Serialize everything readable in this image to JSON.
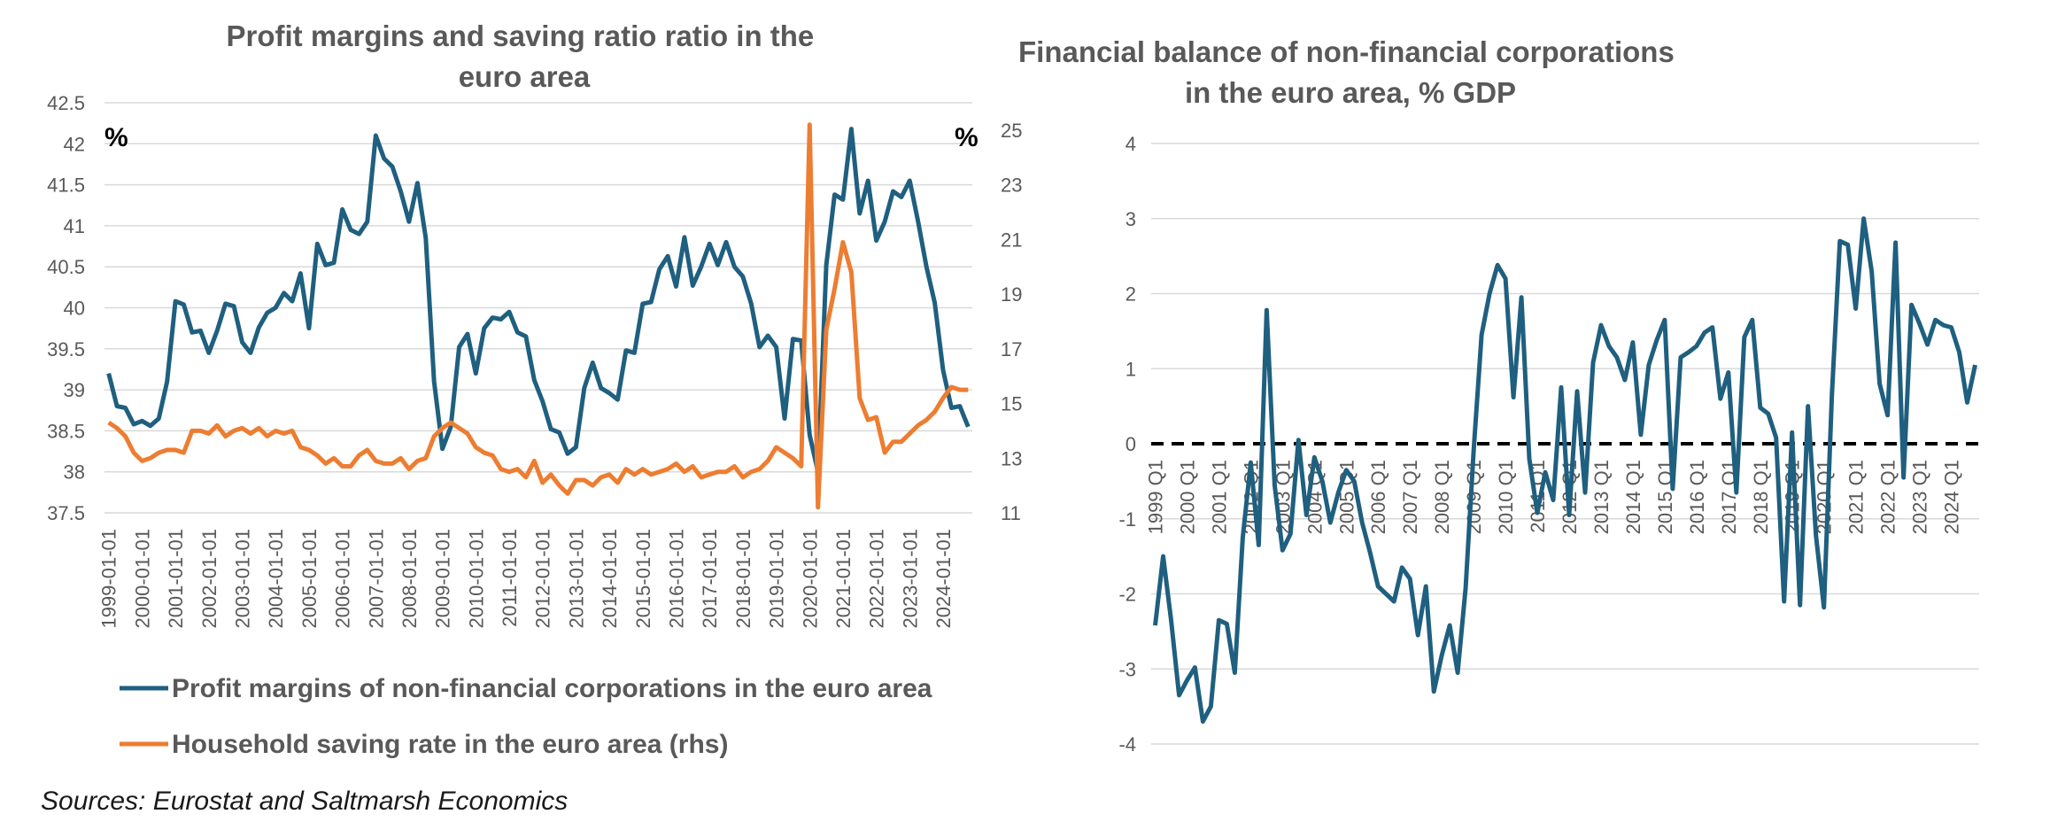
{
  "source_note": "Sources: Eurostat and Saltmarsh Economics",
  "colors": {
    "blue": "#1f5f7f",
    "orange": "#ed7d31",
    "grid": "#d9d9d9",
    "axis_text": "#595959"
  },
  "chart_data": [
    {
      "type": "line",
      "title": "Profit margins and saving ratio ratio in the euro area",
      "y_unit_left": "%",
      "y_unit_right": "%",
      "ylim": [
        37.5,
        42.5
      ],
      "yticks": [
        "42.5",
        "42",
        "41.5",
        "41",
        "40.5",
        "40",
        "39.5",
        "39",
        "38.5",
        "38",
        "37.5"
      ],
      "y2lim": [
        11,
        26
      ],
      "y2ticks": [
        "25",
        "23",
        "21",
        "19",
        "17",
        "15",
        "13",
        "11"
      ],
      "x_tick_labels": [
        "1999-01-01",
        "2000-01-01",
        "2001-01-01",
        "2002-01-01",
        "2003-01-01",
        "2004-01-01",
        "2005-01-01",
        "2006-01-01",
        "2007-01-01",
        "2008-01-01",
        "2009-01-01",
        "2010-01-01",
        "2011-01-01",
        "2012-01-01",
        "2013-01-01",
        "2014-01-01",
        "2015-01-01",
        "2016-01-01",
        "2017-01-01",
        "2018-01-01",
        "2019-01-01",
        "2020-01-01",
        "2021-01-01",
        "2022-01-01",
        "2023-01-01",
        "2024-01-01"
      ],
      "x_start": 1999.0,
      "x_step": 0.25,
      "grid": "horizontal",
      "legend_position": "bottom",
      "series": [
        {
          "name": "Profit margins of non-financial corporations in the euro area",
          "axis": "left",
          "color": "#1f5f7f",
          "values": [
            39.2,
            38.8,
            38.78,
            38.58,
            38.62,
            38.56,
            38.65,
            39.1,
            40.08,
            40.04,
            39.7,
            39.72,
            39.45,
            39.72,
            40.05,
            40.02,
            39.58,
            39.45,
            39.76,
            39.94,
            40.0,
            40.18,
            40.08,
            40.42,
            39.75,
            40.78,
            40.52,
            40.55,
            41.2,
            40.95,
            40.9,
            41.05,
            42.1,
            41.82,
            41.72,
            41.42,
            41.05,
            41.52,
            40.85,
            39.1,
            38.28,
            38.55,
            39.52,
            39.68,
            39.2,
            39.75,
            39.88,
            39.86,
            39.95,
            39.7,
            39.65,
            39.12,
            38.86,
            38.52,
            38.48,
            38.22,
            38.3,
            39.02,
            39.33,
            39.02,
            38.96,
            38.88,
            39.48,
            39.45,
            40.05,
            40.07,
            40.47,
            40.63,
            40.26,
            40.86,
            40.27,
            40.5,
            40.78,
            40.52,
            40.8,
            40.5,
            40.38,
            40.05,
            39.52,
            39.66,
            39.52,
            38.65,
            39.62,
            39.6,
            38.45,
            38.0,
            40.52,
            41.38,
            41.32,
            42.18,
            41.15,
            41.55,
            40.82,
            41.05,
            41.42,
            41.35,
            41.55,
            41.05,
            40.5,
            40.06,
            39.24,
            38.78,
            38.8,
            38.55
          ]
        },
        {
          "name": "Household saving rate in the euro area (rhs)",
          "axis": "right",
          "color": "#ed7d31",
          "values": [
            14.3,
            14.1,
            13.8,
            13.2,
            12.9,
            13.0,
            13.2,
            13.3,
            13.3,
            13.2,
            14.0,
            14.0,
            13.9,
            14.2,
            13.8,
            14.0,
            14.1,
            13.9,
            14.1,
            13.8,
            14.0,
            13.9,
            14.0,
            13.4,
            13.3,
            13.1,
            12.8,
            13.0,
            12.7,
            12.7,
            13.1,
            13.3,
            12.9,
            12.8,
            12.8,
            13.0,
            12.6,
            12.9,
            13.0,
            13.8,
            14.1,
            14.3,
            14.1,
            13.9,
            13.4,
            13.2,
            13.1,
            12.6,
            12.5,
            12.6,
            12.3,
            12.9,
            12.1,
            12.4,
            12.0,
            11.7,
            12.2,
            12.2,
            12.0,
            12.3,
            12.4,
            12.1,
            12.6,
            12.4,
            12.6,
            12.4,
            12.5,
            12.6,
            12.8,
            12.5,
            12.7,
            12.3,
            12.4,
            12.5,
            12.5,
            12.7,
            12.3,
            12.5,
            12.6,
            12.9,
            13.4,
            13.2,
            13.0,
            12.7,
            25.2,
            11.2,
            17.7,
            19.2,
            20.9,
            19.8,
            15.2,
            14.4,
            14.5,
            13.2,
            13.6,
            13.6,
            13.9,
            14.2,
            14.4,
            14.7,
            15.2,
            15.6,
            15.5,
            15.5
          ]
        }
      ]
    },
    {
      "type": "line",
      "title": "Financial balance of non-financial corporations in the euro area, % GDP",
      "ylim": [
        -4,
        4
      ],
      "yticks": [
        "4",
        "3",
        "2",
        "1",
        "0",
        "-1",
        "-2",
        "-3",
        "-4"
      ],
      "x_tick_labels": [
        "1999 Q1",
        "2000 Q1",
        "2001 Q1",
        "2002 Q1",
        "2003 Q1",
        "2004 Q1",
        "2005 Q1",
        "2006 Q1",
        "2007 Q1",
        "2008 Q1",
        "2009 Q1",
        "2010 Q1",
        "2011 Q1",
        "2012 Q1",
        "2013 Q1",
        "2014 Q1",
        "2015 Q1",
        "2016 Q1",
        "2017 Q1",
        "2018 Q1",
        "2019 Q1",
        "2020 Q1",
        "2021 Q1",
        "2022 Q1",
        "2023 Q1",
        "2024 Q1"
      ],
      "x_start": 1999.0,
      "x_step": 0.25,
      "grid": "horizontal",
      "reference_line": 0,
      "series": [
        {
          "color": "#1f5f7f",
          "values": [
            -2.42,
            -1.5,
            -2.35,
            -3.35,
            -3.15,
            -2.98,
            -3.7,
            -3.5,
            -2.35,
            -2.4,
            -3.05,
            -1.25,
            -0.25,
            -1.35,
            1.78,
            -0.55,
            -1.42,
            -1.2,
            0.05,
            -0.95,
            -0.18,
            -0.5,
            -1.05,
            -0.65,
            -0.35,
            -0.5,
            -1.05,
            -1.45,
            -1.9,
            -2.0,
            -2.1,
            -1.65,
            -1.8,
            -2.55,
            -1.9,
            -3.3,
            -2.82,
            -2.42,
            -3.05,
            -1.92,
            -0.1,
            1.45,
            2.0,
            2.38,
            2.2,
            0.62,
            1.95,
            -0.2,
            -0.92,
            -0.38,
            -0.75,
            0.75,
            -0.95,
            0.7,
            -0.65,
            1.08,
            1.58,
            1.3,
            1.15,
            0.85,
            1.35,
            0.12,
            1.05,
            1.38,
            1.65,
            -0.6,
            1.15,
            1.22,
            1.3,
            1.48,
            1.55,
            0.6,
            0.95,
            -0.65,
            1.42,
            1.65,
            0.48,
            0.4,
            0.08,
            -2.1,
            0.15,
            -2.15,
            0.5,
            -1.22,
            -2.18,
            0.65,
            2.7,
            2.65,
            1.8,
            3.0,
            2.3,
            0.8,
            0.38,
            2.68,
            -0.45,
            1.85,
            1.6,
            1.32,
            1.65,
            1.58,
            1.55,
            1.22,
            0.55,
            1.05
          ]
        }
      ]
    }
  ]
}
